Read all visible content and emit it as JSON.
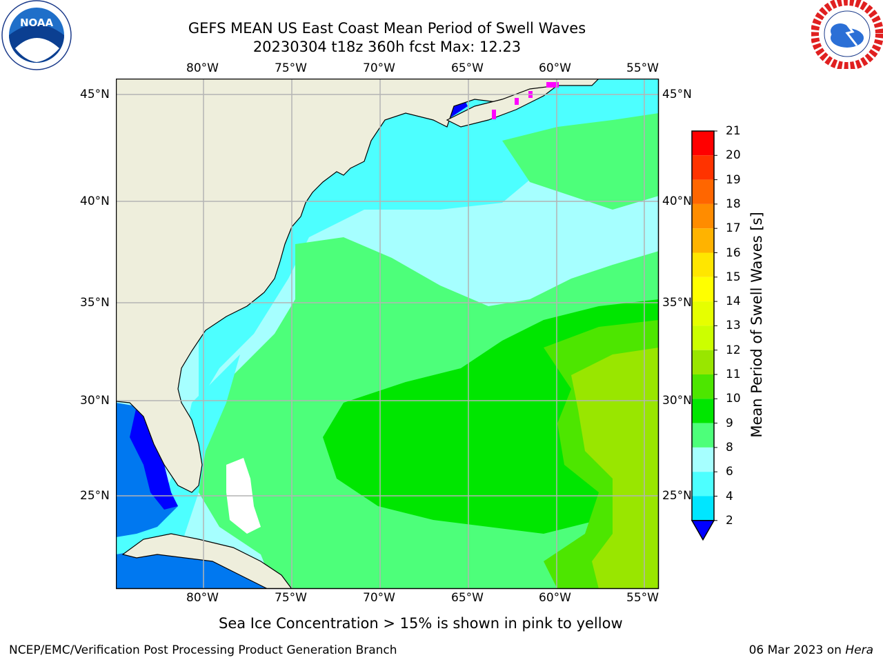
{
  "header": {
    "title_line1": "GEFS MEAN US East Coast Mean Period of Swell Waves",
    "title_line2": "20230304 t18z 360h fcst   Max: 12.23"
  },
  "logos": {
    "left": {
      "name": "noaa-logo",
      "text": "NOAA",
      "ring_text": "NATIONAL OCEANIC AND ATMOSPHERIC ADMINISTRATION · U.S. DEPARTMENT OF COMMERCE"
    },
    "right": {
      "name": "nws-logo",
      "ring_text": "NATIONAL WEATHER SERVICE"
    }
  },
  "map": {
    "lon_labels": [
      "80°W",
      "75°W",
      "70°W",
      "65°W",
      "60°W",
      "55°W"
    ],
    "lat_labels": [
      "45°N",
      "40°N",
      "35°N",
      "30°N",
      "25°N"
    ],
    "lon_range": [
      -85,
      -54.25
    ],
    "lat_range": [
      20.5,
      46
    ],
    "gridlines": true,
    "colors": {
      "land": "#eeeedc",
      "grid": "#b4b4b4",
      "coast": "#000000"
    }
  },
  "colorbar": {
    "label": "Mean Period of Swell Waves [s]",
    "ticks": [
      "2",
      "4",
      "6",
      "8",
      "9",
      "10",
      "11",
      "12",
      "13",
      "14",
      "15",
      "16",
      "17",
      "18",
      "19",
      "20",
      "21"
    ],
    "colors": [
      "#0078f0",
      "#00e6ff",
      "#4dffff",
      "#a6ffff",
      "#4dff7a",
      "#00e600",
      "#4de600",
      "#99e600",
      "#ccff00",
      "#e6ff00",
      "#ffff00",
      "#ffe600",
      "#ffb300",
      "#ff8c00",
      "#ff6600",
      "#ff3300",
      "#ff0000"
    ],
    "extend_color": "#0000ff"
  },
  "subtitle": "Sea Ice Concentration > 15% is shown in pink to yellow",
  "footer": {
    "left": "NCEP/EMC/Verification Post Processing Product Generation Branch",
    "date": "06 Mar 2023 on",
    "machine": "Hera"
  }
}
